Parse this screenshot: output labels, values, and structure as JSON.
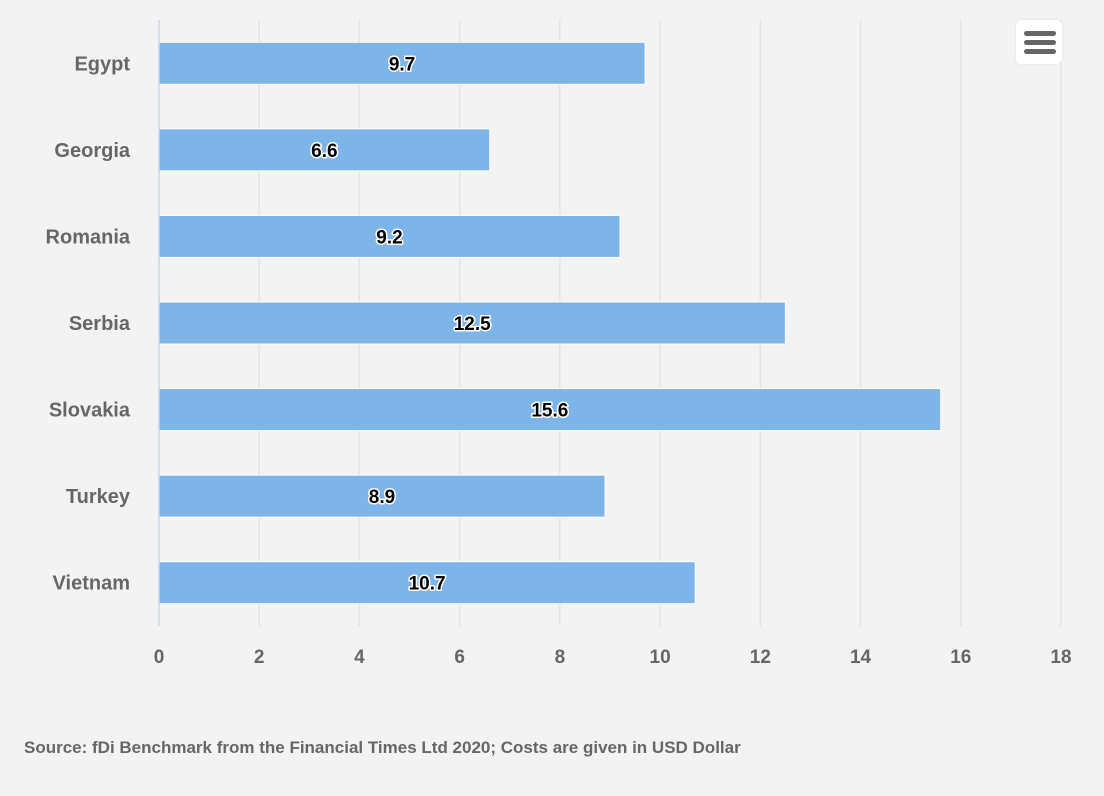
{
  "chart_data": {
    "type": "bar",
    "orientation": "horizontal",
    "categories": [
      "Egypt",
      "Georgia",
      "Romania",
      "Serbia",
      "Slovakia",
      "Turkey",
      "Vietnam"
    ],
    "values": [
      9.7,
      6.6,
      9.2,
      12.5,
      15.6,
      8.9,
      10.7
    ],
    "data_labels": [
      "9.7",
      "6.6",
      "9.2",
      "12.5",
      "15.6",
      "8.9",
      "10.7"
    ],
    "xlim": [
      0,
      18
    ],
    "x_ticks": [
      "0",
      "2",
      "4",
      "6",
      "8",
      "10",
      "12",
      "14",
      "16",
      "18"
    ],
    "grid": true,
    "legend": "none",
    "bar_color": "#7eb5e8",
    "title": "",
    "xlabel": "",
    "ylabel": ""
  },
  "source_note": "Source: fDi Benchmark from the Financial Times Ltd 2020; Costs are given in USD Dollar",
  "menu": {
    "icon": "hamburger-menu-icon"
  },
  "colors": {
    "background": "#f3f3f3",
    "grid": "#e4e4e4",
    "axis": "#c9d6ea",
    "text": "#666666"
  }
}
